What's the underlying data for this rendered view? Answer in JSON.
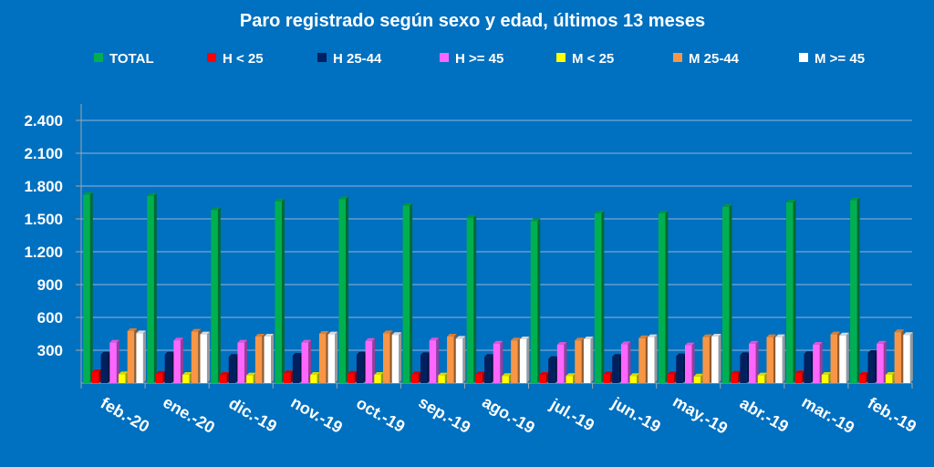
{
  "chart_data": {
    "type": "bar",
    "title": "Paro registrado según sexo y edad, últimos 13 meses",
    "xlabel": "",
    "ylabel": "",
    "categories": [
      "feb.-20",
      "ene.-20",
      "dic.-19",
      "nov.-19",
      "oct.-19",
      "sep.-19",
      "ago.-19",
      "jul.-19",
      "jun.-19",
      "may.-19",
      "abr.-19",
      "mar.-19",
      "feb.-19"
    ],
    "y_ticks": [
      "2.400",
      "2.100",
      "1.800",
      "1.500",
      "1.200",
      "900",
      "600",
      "300"
    ],
    "ylim": [
      0,
      2500
    ],
    "grid": true,
    "legend_position": "top",
    "series": [
      {
        "name": "TOTAL",
        "color": "#00b050",
        "values": [
          1720,
          1710,
          1580,
          1660,
          1680,
          1620,
          1510,
          1480,
          1550,
          1550,
          1610,
          1650,
          1670
        ]
      },
      {
        "name": "H < 25",
        "color": "#ff0000",
        "values": [
          100,
          85,
          75,
          90,
          85,
          80,
          80,
          75,
          80,
          80,
          85,
          90,
          75
        ]
      },
      {
        "name": "H 25-44",
        "color": "#002060",
        "values": [
          260,
          260,
          240,
          250,
          260,
          255,
          240,
          220,
          240,
          245,
          255,
          265,
          275
        ]
      },
      {
        "name": "H >= 45",
        "color": "#ff66ff",
        "values": [
          370,
          390,
          370,
          370,
          385,
          390,
          360,
          350,
          355,
          345,
          360,
          350,
          360
        ]
      },
      {
        "name": "M < 25",
        "color": "#ffff00",
        "values": [
          80,
          75,
          70,
          75,
          75,
          70,
          65,
          65,
          65,
          60,
          70,
          75,
          75
        ]
      },
      {
        "name": "M 25-44",
        "color": "#f79646",
        "values": [
          475,
          470,
          425,
          450,
          455,
          425,
          390,
          390,
          410,
          420,
          420,
          445,
          465
        ]
      },
      {
        "name": "M >= 45",
        "color": "#ffffff",
        "values": [
          455,
          445,
          425,
          445,
          440,
          405,
          400,
          400,
          420,
          425,
          420,
          435,
          440
        ]
      }
    ]
  }
}
